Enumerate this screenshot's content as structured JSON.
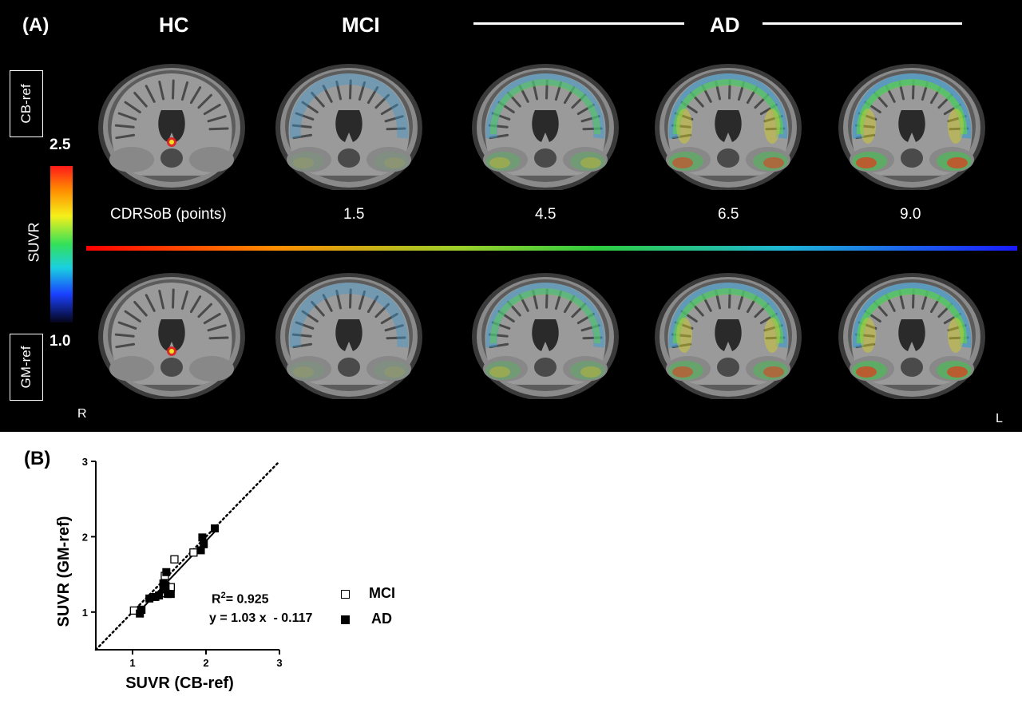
{
  "panel_a": {
    "panel_label": "(A)",
    "groups": {
      "hc": "HC",
      "mci": "MCI",
      "ad": "AD"
    },
    "reference_labels": {
      "top": "CB-ref",
      "bottom": "GM-ref"
    },
    "colorbar": {
      "max": "2.5",
      "min": "1.0",
      "label": "SUVR"
    },
    "cdrsob": {
      "label": "CDRSoB (points)",
      "values": [
        "1.5",
        "4.5",
        "6.5",
        "9.0"
      ]
    },
    "orientation": {
      "left": "R",
      "right": "L"
    },
    "brain_intensity_levels": [
      0,
      0.2,
      0.55,
      0.8,
      1.0
    ]
  },
  "panel_b": {
    "panel_label": "(B)",
    "annotation": {
      "r2_prefix": "R",
      "r2_sup": "2",
      "r2_value": "= 0.925",
      "equation": "y = 1.03 x  - 0.117"
    },
    "legend": {
      "mci": "MCI",
      "ad": "AD"
    }
  },
  "chart_data": {
    "type": "scatter",
    "title": "",
    "xlabel": "SUVR (CB-ref)",
    "ylabel": "SUVR (GM-ref)",
    "xlim": [
      0.5,
      3
    ],
    "ylim": [
      0.5,
      3
    ],
    "xticks": [
      1,
      2,
      3
    ],
    "yticks": [
      1,
      2,
      3
    ],
    "series": [
      {
        "name": "MCI",
        "marker": "open-square",
        "x": [
          1.02,
          1.44,
          1.52,
          1.57,
          1.83,
          1.45,
          1.12
        ],
        "y": [
          1.02,
          1.48,
          1.33,
          1.7,
          1.79,
          1.25,
          1.03
        ]
      },
      {
        "name": "AD",
        "marker": "filled-square",
        "x": [
          1.1,
          1.12,
          1.23,
          1.31,
          1.36,
          1.42,
          1.45,
          1.48,
          1.46,
          1.52,
          1.42,
          1.93,
          1.97,
          2.12,
          1.95
        ],
        "y": [
          0.98,
          1.03,
          1.18,
          1.2,
          1.22,
          1.3,
          1.35,
          1.24,
          1.53,
          1.24,
          1.38,
          1.82,
          1.9,
          2.11,
          1.99
        ]
      }
    ],
    "fit_line": {
      "slope": 1.03,
      "intercept": -0.117,
      "x_range": [
        1.08,
        2.15
      ]
    },
    "identity_line": true
  }
}
